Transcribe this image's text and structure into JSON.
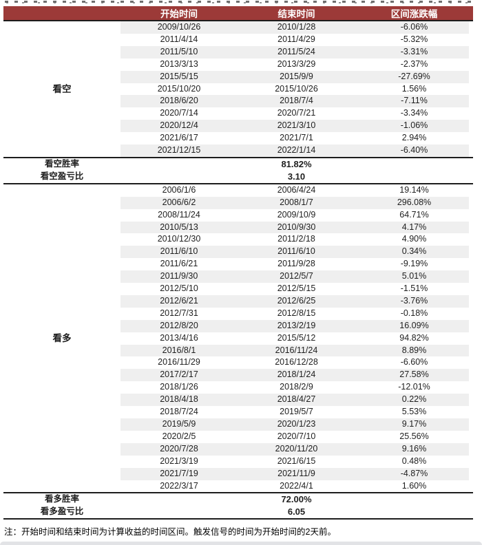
{
  "colors": {
    "header_bg": "#9c3a38",
    "stripe": "#efefef",
    "rule_dark": "#1c1c1c"
  },
  "table": {
    "columns": [
      "开始时间",
      "结束时间",
      "区间涨跌幅"
    ],
    "sections": [
      {
        "type": "data",
        "label": "看空",
        "stripe": "odd",
        "rows": [
          [
            "2009/10/26",
            "2010/1/28",
            "-6.06%"
          ],
          [
            "2011/4/14",
            "2011/4/29",
            "-5.32%"
          ],
          [
            "2011/5/10",
            "2011/5/24",
            "-3.31%"
          ],
          [
            "2013/3/13",
            "2013/3/29",
            "-2.37%"
          ],
          [
            "2015/5/15",
            "2015/9/9",
            "-27.69%"
          ],
          [
            "2015/10/20",
            "2015/10/26",
            "1.56%"
          ],
          [
            "2018/6/20",
            "2018/7/4",
            "-7.11%"
          ],
          [
            "2020/7/14",
            "2020/7/21",
            "-3.34%"
          ],
          [
            "2020/12/4",
            "2021/3/10",
            "-1.06%"
          ],
          [
            "2021/6/17",
            "2021/7/1",
            "2.94%"
          ],
          [
            "2021/12/15",
            "2022/1/14",
            "-6.40%"
          ]
        ]
      },
      {
        "type": "summary",
        "rows": [
          {
            "label": "看空胜率",
            "value": "81.82%"
          },
          {
            "label": "看空盈亏比",
            "value": "3.10"
          }
        ]
      },
      {
        "type": "data",
        "label": "看多",
        "stripe": "even",
        "rows": [
          [
            "2006/1/6",
            "2006/4/24",
            "19.14%"
          ],
          [
            "2006/6/2",
            "2008/1/7",
            "296.08%"
          ],
          [
            "2008/11/24",
            "2009/10/9",
            "64.71%"
          ],
          [
            "2010/5/13",
            "2010/9/30",
            "4.17%"
          ],
          [
            "2010/12/30",
            "2011/2/18",
            "4.90%"
          ],
          [
            "2011/6/10",
            "2011/6/10",
            "0.34%"
          ],
          [
            "2011/6/21",
            "2011/9/28",
            "-9.19%"
          ],
          [
            "2011/9/30",
            "2012/5/7",
            "5.01%"
          ],
          [
            "2012/5/10",
            "2012/5/15",
            "-1.51%"
          ],
          [
            "2012/6/21",
            "2012/6/25",
            "-3.76%"
          ],
          [
            "2012/7/31",
            "2012/8/15",
            "-0.18%"
          ],
          [
            "2012/8/20",
            "2013/2/19",
            "16.09%"
          ],
          [
            "2013/4/16",
            "2015/5/12",
            "94.82%"
          ],
          [
            "2016/8/1",
            "2016/11/24",
            "8.89%"
          ],
          [
            "2016/11/29",
            "2016/12/28",
            "-6.60%"
          ],
          [
            "2017/2/17",
            "2018/1/24",
            "27.58%"
          ],
          [
            "2018/1/26",
            "2018/2/9",
            "-12.01%"
          ],
          [
            "2018/4/18",
            "2018/4/27",
            "0.22%"
          ],
          [
            "2018/7/24",
            "2019/5/7",
            "5.53%"
          ],
          [
            "2019/5/9",
            "2020/1/23",
            "9.17%"
          ],
          [
            "2020/2/5",
            "2020/7/10",
            "25.56%"
          ],
          [
            "2020/7/28",
            "2020/11/20",
            "9.16%"
          ],
          [
            "2021/3/19",
            "2021/6/15",
            "0.48%"
          ],
          [
            "2021/7/19",
            "2021/11/9",
            "-4.87%"
          ],
          [
            "2022/3/17",
            "2022/4/1",
            "1.60%"
          ]
        ]
      },
      {
        "type": "summary",
        "rows": [
          {
            "label": "看多胜率",
            "value": "72.00%"
          },
          {
            "label": "看多盈亏比",
            "value": "6.05"
          }
        ]
      }
    ]
  },
  "footnote": "注：开始时间和结束时间为计算收益的时间区间。触发信号的时间为开始时间的2天前。"
}
